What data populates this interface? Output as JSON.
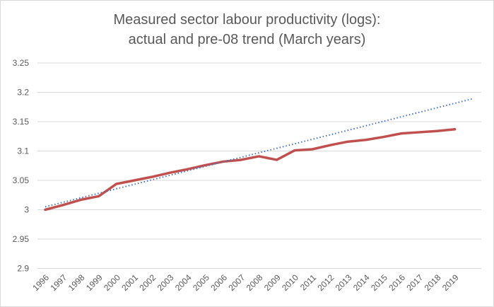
{
  "chart_data": {
    "type": "line",
    "title": [
      "Measured sector labour productivity (logs):",
      "actual and pre-08 trend  (March years)"
    ],
    "xlabel": "",
    "ylabel": "",
    "ylim": [
      2.9,
      3.25
    ],
    "yticks": [
      "2.9",
      "2.95",
      "3",
      "3.05",
      "3.1",
      "3.15",
      "3.2",
      "3.25"
    ],
    "grid": true,
    "legend": "none",
    "categories": [
      "1996",
      "1997",
      "1998",
      "1999",
      "2000",
      "2001",
      "2002",
      "2003",
      "2004",
      "2005",
      "2006",
      "2007",
      "2008",
      "2009",
      "2010",
      "2011",
      "2012",
      "2013",
      "2014",
      "2015",
      "2016",
      "2017",
      "2018",
      "2019"
    ],
    "series": [
      {
        "style": "solid",
        "color": "#c0504d",
        "values": [
          3.0,
          3.008,
          3.017,
          3.023,
          3.044,
          3.05,
          3.056,
          3.063,
          3.069,
          3.076,
          3.082,
          3.085,
          3.091,
          3.085,
          3.101,
          3.103,
          3.11,
          3.116,
          3.119,
          3.124,
          3.13,
          3.132,
          3.134,
          3.137
        ]
      },
      {
        "style": "dotted",
        "color": "#4472c4",
        "x": [
          1996,
          2020
        ],
        "values": [
          3.005,
          3.189
        ]
      }
    ]
  }
}
